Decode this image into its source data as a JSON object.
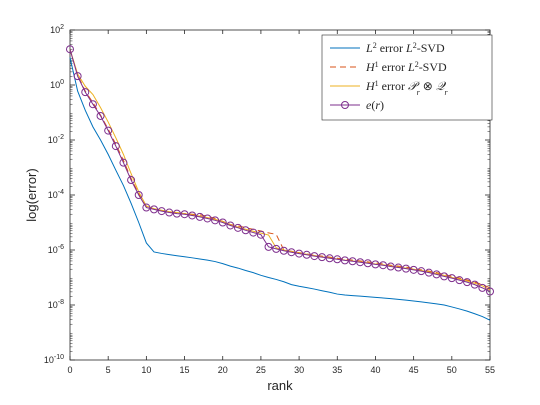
{
  "chart_data": {
    "type": "line",
    "xlabel": "rank",
    "ylabel": "log(error)",
    "xlim": [
      0,
      55
    ],
    "ylim_log10": [
      -10,
      2
    ],
    "yscale": "log",
    "grid": false,
    "legend_position": "top-right",
    "x_ticks": [
      0,
      5,
      10,
      15,
      20,
      25,
      30,
      35,
      40,
      45,
      50,
      55
    ],
    "y_tick_exponents": [
      2,
      0,
      -2,
      -4,
      -6,
      -8,
      -10
    ],
    "series": [
      {
        "name": "L^2 error L^2-SVD",
        "color": "#0072BD",
        "style": "solid",
        "marker": "none",
        "x": [
          0,
          1,
          2,
          3,
          4,
          5,
          6,
          7,
          8,
          9,
          10,
          11,
          12,
          13,
          14,
          15,
          16,
          17,
          18,
          19,
          20,
          21,
          22,
          23,
          24,
          25,
          26,
          27,
          28,
          29,
          30,
          31,
          32,
          33,
          34,
          35,
          36,
          37,
          38,
          39,
          40,
          41,
          42,
          43,
          44,
          45,
          46,
          47,
          48,
          49,
          50,
          51,
          52,
          53,
          54,
          55
        ],
        "y": [
          10,
          0.6,
          0.12,
          0.03,
          0.01,
          0.003,
          0.0008,
          0.00022,
          5e-05,
          1e-05,
          1.8e-06,
          8.5e-07,
          7.5e-07,
          6.8e-07,
          6.2e-07,
          5.7e-07,
          5.2e-07,
          4.7e-07,
          4.3e-07,
          3.8e-07,
          3.2e-07,
          2.6e-07,
          2.2e-07,
          1.8e-07,
          1.5e-07,
          1.2e-07,
          1e-07,
          8.5e-08,
          7e-08,
          5.5e-08,
          4.8e-08,
          4.3e-08,
          3.8e-08,
          3.3e-08,
          2.9e-08,
          2.5e-08,
          2.3e-08,
          2.2e-08,
          2.1e-08,
          2e-08,
          1.9e-08,
          1.8e-08,
          1.7e-08,
          1.6e-08,
          1.5e-08,
          1.4e-08,
          1.3e-08,
          1.2e-08,
          1.1e-08,
          1e-08,
          8.5e-09,
          7.2e-09,
          6e-09,
          4.8e-09,
          3.8e-09,
          2.8e-09
        ]
      },
      {
        "name": "H^1 error L^2-SVD",
        "color": "#D95319",
        "style": "dashed",
        "marker": "none",
        "x": [
          0,
          1,
          2,
          3,
          4,
          5,
          6,
          7,
          8,
          9,
          10,
          11,
          12,
          13,
          14,
          15,
          16,
          17,
          18,
          19,
          20,
          21,
          22,
          23,
          24,
          25,
          26,
          27,
          28,
          29,
          30,
          31,
          32,
          33,
          34,
          35,
          36,
          37,
          38,
          39,
          40,
          41,
          42,
          43,
          44,
          45,
          46,
          47,
          48,
          49,
          50,
          51,
          52,
          53,
          54,
          55
        ],
        "y": [
          20,
          2.3,
          0.6,
          0.23,
          0.08,
          0.025,
          0.007,
          0.0018,
          0.0004,
          0.00011,
          3.8e-05,
          3.1e-05,
          2.7e-05,
          2.4e-05,
          2.2e-05,
          2.1e-05,
          2e-05,
          1.9e-05,
          1.7e-05,
          1.4e-05,
          1.1e-05,
          8.5e-06,
          7.5e-06,
          6.5e-06,
          5.6e-06,
          4.9e-06,
          4.2e-06,
          3.7e-06,
          1e-06,
          9e-07,
          8e-07,
          7.2e-07,
          6.5e-07,
          6e-07,
          5.5e-07,
          5e-07,
          4.6e-07,
          4.3e-07,
          4e-07,
          3.7e-07,
          3.4e-07,
          3.1e-07,
          2.8e-07,
          2.6e-07,
          2.4e-07,
          2.1e-07,
          1.9e-07,
          1.7e-07,
          1.5e-07,
          1.3e-07,
          1.1e-07,
          9.5e-08,
          8.1e-08,
          6.8e-08,
          5.5e-08,
          4.2e-08
        ]
      },
      {
        "name": "H^1 error P_r ⊗ Q_r",
        "color": "#EDB120",
        "style": "solid",
        "marker": "none",
        "x": [
          0,
          1,
          2,
          3,
          4,
          5,
          6,
          7,
          8,
          9,
          10,
          11,
          12,
          13,
          14,
          15,
          16,
          17,
          18,
          19,
          20,
          21,
          22,
          23,
          24,
          25,
          26,
          27,
          28,
          29,
          30,
          31,
          32,
          33,
          34,
          35,
          36,
          37,
          38,
          39,
          40,
          41,
          42,
          43,
          44,
          45,
          46,
          47,
          48,
          49,
          50,
          51,
          52,
          53,
          54,
          55
        ],
        "y": [
          20,
          2.5,
          0.9,
          0.45,
          0.15,
          0.045,
          0.012,
          0.003,
          0.0006,
          0.00013,
          4e-05,
          3.2e-05,
          2.8e-05,
          2.5e-05,
          2.3e-05,
          2.1e-05,
          1.9e-05,
          1.7e-05,
          1.5e-05,
          1.3e-05,
          1.1e-05,
          8.2e-06,
          6.8e-06,
          5.7e-06,
          4.8e-06,
          4.1e-06,
          3.5e-06,
          1.2e-06,
          1e-06,
          8.8e-07,
          7.8e-07,
          7e-07,
          6.3e-07,
          5.7e-07,
          5.2e-07,
          4.7e-07,
          4.3e-07,
          4e-07,
          3.7e-07,
          3.4e-07,
          3.1e-07,
          2.9e-07,
          2.6e-07,
          2.4e-07,
          2.2e-07,
          2e-07,
          1.8e-07,
          1.6e-07,
          1.4e-07,
          1.2e-07,
          1e-07,
          8.8e-08,
          7.5e-08,
          6.2e-08,
          5e-08,
          3.5e-08
        ]
      },
      {
        "name": "e(r)",
        "color": "#7E2F8E",
        "style": "solid",
        "marker": "circle",
        "x": [
          0,
          1,
          2,
          3,
          4,
          5,
          6,
          7,
          8,
          9,
          10,
          11,
          12,
          13,
          14,
          15,
          16,
          17,
          18,
          19,
          20,
          21,
          22,
          23,
          24,
          25,
          26,
          27,
          28,
          29,
          30,
          31,
          32,
          33,
          34,
          35,
          36,
          37,
          38,
          39,
          40,
          41,
          42,
          43,
          44,
          45,
          46,
          47,
          48,
          49,
          50,
          51,
          52,
          53,
          54,
          55
        ],
        "y": [
          20,
          2.1,
          0.55,
          0.2,
          0.075,
          0.022,
          0.006,
          0.0015,
          0.00035,
          0.0001,
          3.5e-05,
          3e-05,
          2.6e-05,
          2.3e-05,
          2.1e-05,
          2e-05,
          1.8e-05,
          1.6e-05,
          1.4e-05,
          1.2e-05,
          1e-05,
          7.8e-06,
          6.4e-06,
          5.2e-06,
          4.3e-06,
          3.6e-06,
          1.3e-06,
          1.1e-06,
          9.4e-07,
          8.3e-07,
          7.4e-07,
          6.7e-07,
          6e-07,
          5.5e-07,
          5e-07,
          4.6e-07,
          4.2e-07,
          3.9e-07,
          3.6e-07,
          3.3e-07,
          3e-07,
          2.8e-07,
          2.5e-07,
          2.3e-07,
          2.1e-07,
          1.9e-07,
          1.7e-07,
          1.5e-07,
          1.3e-07,
          1.1e-07,
          9.5e-08,
          8e-08,
          6.8e-08,
          5.5e-08,
          4.2e-08,
          3.1e-08
        ]
      }
    ]
  }
}
